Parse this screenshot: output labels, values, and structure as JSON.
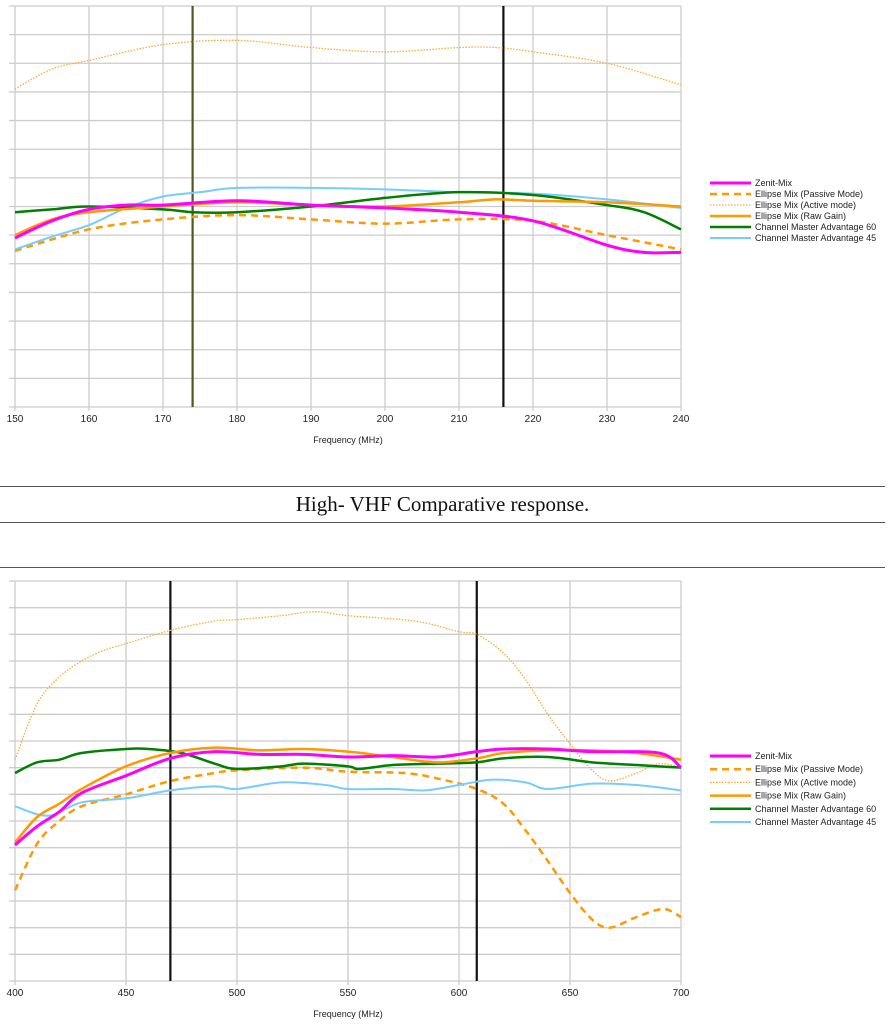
{
  "caption": "High- VHF Comparative response.",
  "colors": {
    "zenit": "#ff00ff",
    "ellipse_passive": "#ff9900",
    "ellipse_active": "#ffaa33",
    "ellipse_raw": "#ff9900",
    "cm60": "#008000",
    "cm45": "#77ccff",
    "grid": "#cccccc"
  },
  "chart_data": [
    {
      "type": "line",
      "title": "",
      "xlabel": "Frequency (MHz)",
      "ylabel": "",
      "xlim": [
        150,
        240
      ],
      "ylim": [
        0,
        14
      ],
      "xticks": [
        150,
        160,
        170,
        180,
        190,
        200,
        210,
        220,
        230,
        240
      ],
      "y_gridlines": 14,
      "y_tick_labels": false,
      "grid": true,
      "legend": "right",
      "markers": [
        {
          "x": 174,
          "color": "#4a5a20"
        },
        {
          "x": 216,
          "color": "#111111"
        }
      ],
      "series": [
        {
          "name": "Zenit-Mix",
          "style": "solid",
          "color": "#ff00ff",
          "width": 3,
          "x": [
            150,
            155,
            160,
            165,
            170,
            180,
            190,
            200,
            210,
            220,
            230,
            235,
            240
          ],
          "y": [
            5.9,
            6.5,
            6.9,
            7.05,
            7.05,
            7.2,
            7.05,
            6.95,
            6.8,
            6.5,
            5.65,
            5.4,
            5.4
          ]
        },
        {
          "name": "Ellipse Mix (Passive Mode)",
          "style": "dashed",
          "color": "#ff9900",
          "width": 2.5,
          "x": [
            150,
            160,
            170,
            180,
            190,
            200,
            210,
            220,
            230,
            240
          ],
          "y": [
            5.45,
            6.2,
            6.55,
            6.7,
            6.55,
            6.4,
            6.55,
            6.5,
            6.0,
            5.5
          ]
        },
        {
          "name": "Ellipse Mix (Active mode)",
          "style": "dotted",
          "color": "#ffaa33",
          "width": 1.3,
          "x": [
            150,
            155,
            160,
            170,
            180,
            190,
            200,
            210,
            215,
            220,
            230,
            240
          ],
          "y": [
            11.1,
            11.8,
            12.1,
            12.65,
            12.8,
            12.55,
            12.4,
            12.55,
            12.55,
            12.4,
            12.0,
            11.25
          ]
        },
        {
          "name": "Ellipse Mix (Raw Gain)",
          "style": "solid",
          "color": "#ff9900",
          "width": 2.5,
          "x": [
            150,
            155,
            160,
            170,
            180,
            190,
            200,
            210,
            215,
            220,
            230,
            240
          ],
          "y": [
            6.0,
            6.55,
            6.8,
            7.0,
            7.15,
            7.05,
            7.0,
            7.15,
            7.25,
            7.2,
            7.15,
            7.0
          ]
        },
        {
          "name": "Channel Master Advantage 60",
          "style": "solid",
          "color": "#008000",
          "width": 2.5,
          "x": [
            150,
            155,
            160,
            170,
            174,
            180,
            190,
            200,
            210,
            220,
            230,
            235,
            240
          ],
          "y": [
            6.8,
            6.9,
            7.0,
            6.9,
            6.8,
            6.8,
            7.0,
            7.3,
            7.5,
            7.4,
            7.05,
            6.8,
            6.2
          ]
        },
        {
          "name": "Channel Master Advantage 45",
          "style": "solid",
          "color": "#77ccff",
          "width": 2,
          "x": [
            150,
            155,
            160,
            165,
            170,
            175,
            180,
            190,
            200,
            210,
            220,
            230,
            240
          ],
          "y": [
            5.5,
            5.95,
            6.35,
            6.95,
            7.35,
            7.5,
            7.65,
            7.65,
            7.6,
            7.5,
            7.45,
            7.25,
            6.95
          ]
        }
      ]
    },
    {
      "type": "line",
      "title": "",
      "xlabel": "Frequency (MHz)",
      "ylabel": "",
      "xlim": [
        400,
        700
      ],
      "ylim": [
        0,
        15
      ],
      "xticks": [
        400,
        450,
        500,
        550,
        600,
        650,
        700
      ],
      "y_gridlines": 15,
      "y_tick_labels": false,
      "grid": true,
      "legend": "right",
      "markers": [
        {
          "x": 470,
          "color": "#111111"
        },
        {
          "x": 608,
          "color": "#111111"
        }
      ],
      "series": [
        {
          "name": "Zenit-Mix",
          "style": "solid",
          "color": "#ff00ff",
          "width": 3,
          "x": [
            400,
            410,
            420,
            430,
            450,
            470,
            490,
            510,
            530,
            550,
            570,
            590,
            608,
            620,
            640,
            660,
            690,
            700
          ],
          "y": [
            5.1,
            5.8,
            6.35,
            7.05,
            7.7,
            8.35,
            8.6,
            8.5,
            8.5,
            8.4,
            8.45,
            8.4,
            8.6,
            8.7,
            8.7,
            8.6,
            8.55,
            8.0
          ]
        },
        {
          "name": "Ellipse Mix (Passive Mode)",
          "style": "dashed",
          "color": "#ff9900",
          "width": 2.5,
          "x": [
            400,
            410,
            420,
            430,
            450,
            470,
            490,
            500,
            530,
            550,
            575,
            590,
            608,
            620,
            630,
            640,
            650,
            660,
            668,
            680,
            692,
            700
          ],
          "y": [
            3.4,
            5.15,
            6.0,
            6.55,
            7.0,
            7.5,
            7.8,
            7.9,
            8.0,
            7.85,
            7.8,
            7.6,
            7.2,
            6.65,
            5.65,
            4.5,
            3.3,
            2.3,
            2.0,
            2.4,
            2.7,
            2.4
          ]
        },
        {
          "name": "Ellipse Mix (Active mode)",
          "style": "dotted",
          "color": "#ffaa33",
          "width": 1.3,
          "x": [
            400,
            410,
            420,
            430,
            440,
            450,
            470,
            490,
            500,
            520,
            535,
            550,
            580,
            600,
            608,
            620,
            630,
            640,
            650,
            660,
            668,
            680,
            690,
            700
          ],
          "y": [
            8.3,
            10.4,
            11.4,
            12.0,
            12.4,
            12.65,
            13.15,
            13.5,
            13.55,
            13.7,
            13.85,
            13.7,
            13.5,
            13.1,
            13.0,
            12.3,
            11.3,
            10.0,
            8.9,
            7.9,
            7.5,
            7.8,
            8.15,
            8.0
          ]
        },
        {
          "name": "Ellipse Mix (Raw Gain)",
          "style": "solid",
          "color": "#ff9900",
          "width": 2.5,
          "x": [
            400,
            410,
            420,
            430,
            450,
            470,
            490,
            510,
            530,
            550,
            570,
            590,
            608,
            620,
            640,
            660,
            680,
            700
          ],
          "y": [
            5.2,
            6.15,
            6.65,
            7.2,
            8.05,
            8.55,
            8.75,
            8.65,
            8.7,
            8.6,
            8.4,
            8.2,
            8.35,
            8.55,
            8.65,
            8.65,
            8.55,
            8.3
          ]
        },
        {
          "name": "Channel Master Advantage 60",
          "style": "solid",
          "color": "#008000",
          "width": 2.5,
          "x": [
            400,
            410,
            420,
            430,
            450,
            460,
            475,
            490,
            500,
            520,
            530,
            550,
            555,
            570,
            590,
            608,
            620,
            640,
            660,
            680,
            700
          ],
          "y": [
            7.8,
            8.2,
            8.3,
            8.55,
            8.7,
            8.7,
            8.55,
            8.15,
            7.95,
            8.05,
            8.15,
            8.05,
            7.95,
            8.1,
            8.15,
            8.2,
            8.35,
            8.4,
            8.2,
            8.1,
            8.0
          ]
        },
        {
          "name": "Channel Master Advantage 45",
          "style": "solid",
          "color": "#77ccff",
          "width": 2,
          "x": [
            400,
            415,
            430,
            450,
            470,
            490,
            500,
            520,
            540,
            550,
            570,
            585,
            600,
            615,
            630,
            640,
            660,
            680,
            700
          ],
          "y": [
            6.55,
            6.2,
            6.7,
            6.85,
            7.15,
            7.3,
            7.2,
            7.45,
            7.35,
            7.2,
            7.2,
            7.15,
            7.35,
            7.55,
            7.45,
            7.2,
            7.4,
            7.35,
            7.15
          ]
        }
      ]
    }
  ]
}
